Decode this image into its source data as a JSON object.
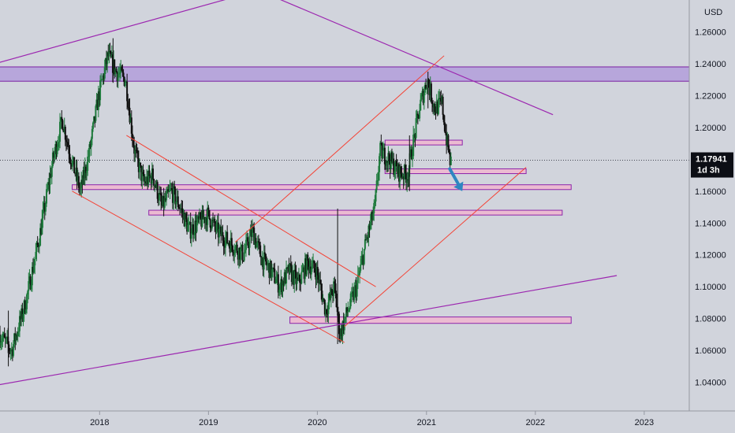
{
  "chart_data": {
    "type": "candlestick",
    "currency": "USD",
    "x_ticks": [
      "2018",
      "2019",
      "2020",
      "2021",
      "2022",
      "2023"
    ],
    "y_ticks": [
      "1.26000",
      "1.24000",
      "1.22000",
      "1.20000",
      "1.18000",
      "1.16000",
      "1.14000",
      "1.12000",
      "1.10000",
      "1.08000",
      "1.06000",
      "1.04000"
    ],
    "ylim": [
      1.022,
      1.28
    ],
    "xlim": [
      "2017-02-01",
      "2023-06-01"
    ],
    "last_price": "1.17941",
    "countdown": "1d 3h",
    "colors": {
      "background": "#d1d4dc",
      "up": "#1e7a3c",
      "down": "#101010",
      "purple_line": "#9c27b0",
      "red_line": "#f44336",
      "zone_fill": "#b39ddb",
      "zone_border": "#7b1fa2",
      "pink_fill": "#f0b6cf",
      "pink_border": "#8e24aa",
      "arrow": "#2e86c1",
      "price_tag": "#0c0e15"
    },
    "price_path": [
      [
        "2017-02-01",
        1.07
      ],
      [
        "2017-03-15",
        1.06
      ],
      [
        "2017-05-01",
        1.09
      ],
      [
        "2017-06-15",
        1.13
      ],
      [
        "2017-08-01",
        1.18
      ],
      [
        "2017-09-01",
        1.205
      ],
      [
        "2017-10-01",
        1.18
      ],
      [
        "2017-11-01",
        1.16
      ],
      [
        "2017-12-01",
        1.185
      ],
      [
        "2018-01-01",
        1.22
      ],
      [
        "2018-02-01",
        1.245
      ],
      [
        "2018-03-01",
        1.235
      ],
      [
        "2018-04-01",
        1.23
      ],
      [
        "2018-05-01",
        1.185
      ],
      [
        "2018-06-01",
        1.165
      ],
      [
        "2018-07-01",
        1.17
      ],
      [
        "2018-08-01",
        1.15
      ],
      [
        "2018-09-01",
        1.16
      ],
      [
        "2018-10-01",
        1.15
      ],
      [
        "2018-11-01",
        1.135
      ],
      [
        "2018-12-01",
        1.14
      ],
      [
        "2019-01-01",
        1.145
      ],
      [
        "2019-02-01",
        1.135
      ],
      [
        "2019-03-01",
        1.13
      ],
      [
        "2019-04-01",
        1.125
      ],
      [
        "2019-05-01",
        1.12
      ],
      [
        "2019-06-01",
        1.135
      ],
      [
        "2019-07-01",
        1.118
      ],
      [
        "2019-08-01",
        1.11
      ],
      [
        "2019-09-01",
        1.1
      ],
      [
        "2019-10-01",
        1.11
      ],
      [
        "2019-11-01",
        1.102
      ],
      [
        "2019-12-01",
        1.115
      ],
      [
        "2020-01-01",
        1.11
      ],
      [
        "2020-02-01",
        1.085
      ],
      [
        "2020-03-01",
        1.1
      ],
      [
        "2020-03-20",
        1.07
      ],
      [
        "2020-04-15",
        1.085
      ],
      [
        "2020-05-15",
        1.1
      ],
      [
        "2020-06-15",
        1.128
      ],
      [
        "2020-07-15",
        1.15
      ],
      [
        "2020-08-01",
        1.185
      ],
      [
        "2020-09-01",
        1.18
      ],
      [
        "2020-10-01",
        1.172
      ],
      [
        "2020-11-01",
        1.17
      ],
      [
        "2020-11-20",
        1.19
      ],
      [
        "2020-12-15",
        1.215
      ],
      [
        "2021-01-06",
        1.23
      ],
      [
        "2021-02-01",
        1.212
      ],
      [
        "2021-02-25",
        1.215
      ],
      [
        "2021-03-10",
        1.195
      ],
      [
        "2021-03-25",
        1.178
      ]
    ],
    "candle_highs_lows": [
      [
        "2018-02-15",
        1.256,
        1.228
      ],
      [
        "2020-03-09",
        1.149,
        1.064
      ],
      [
        "2021-01-06",
        1.235,
        1.212
      ],
      [
        "2017-03-01",
        1.085,
        1.05
      ],
      [
        "2020-11-05",
        1.195,
        1.16
      ]
    ],
    "drawings": {
      "purple_lines": [
        [
          [
            "2017-01-15",
            1.24
          ],
          [
            "2019-09-01",
            1.29
          ]
        ],
        [
          [
            "2019-07-01",
            1.285
          ],
          [
            "2022-03-01",
            1.208
          ]
        ],
        [
          [
            "2017-01-15",
            1.038
          ],
          [
            "2022-10-01",
            1.107
          ]
        ]
      ],
      "red_lines": [
        [
          [
            "2018-04-01",
            1.195
          ],
          [
            "2020-07-15",
            1.1
          ]
        ],
        [
          [
            "2017-10-01",
            1.16
          ],
          [
            "2020-04-01",
            1.065
          ]
        ],
        [
          [
            "2019-04-01",
            1.128
          ],
          [
            "2021-03-01",
            1.245
          ]
        ],
        [
          [
            "2020-04-01",
            1.075
          ],
          [
            "2021-12-01",
            1.175
          ]
        ]
      ],
      "zone": [
        "2017-01-01",
        "2023-06-01",
        1.229,
        1.238
      ],
      "pink_zones": [
        [
          "2020-08-15",
          "2021-05-01",
          1.189,
          1.192
        ],
        [
          "2020-08-15",
          "2021-12-01",
          1.171,
          1.174
        ],
        [
          "2017-10-01",
          "2022-05-01",
          1.161,
          1.164
        ],
        [
          "2018-06-15",
          "2022-04-01",
          1.145,
          1.148
        ],
        [
          "2019-10-01",
          "2022-05-01",
          1.077,
          1.081
        ]
      ],
      "arrow": [
        [
          "2021-03-20",
          1.174
        ],
        [
          "2021-05-01",
          1.16
        ]
      ]
    }
  }
}
